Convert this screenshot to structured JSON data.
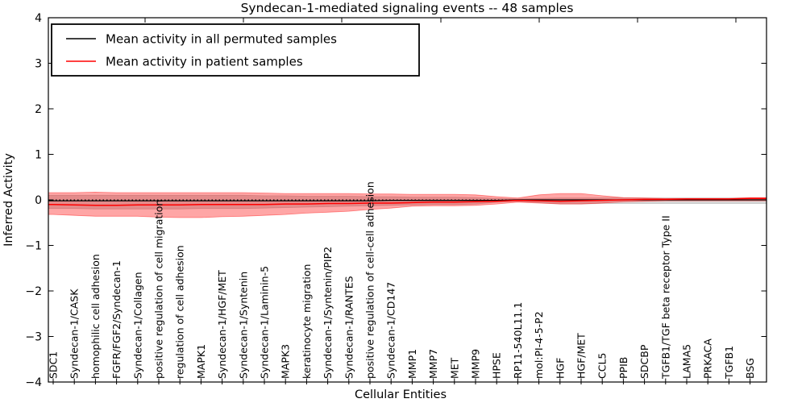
{
  "title": "Syndecan-1-mediated signaling events -- 48 samples",
  "legend": {
    "items": [
      {
        "label": "Mean activity in all permuted samples",
        "color": "#000000"
      },
      {
        "label": "Mean activity in patient samples",
        "color": "#ff0000"
      }
    ]
  },
  "chart_data": {
    "type": "line",
    "title": "Syndecan-1-mediated signaling events -- 48 samples",
    "xlabel": "Cellular Entities",
    "ylabel": "Inferred Activity",
    "ylim": [
      -4,
      4
    ],
    "ytick_values": [
      4,
      3,
      2,
      1,
      0,
      -1,
      -2,
      -3,
      -4
    ],
    "ytick_labels": [
      "4",
      "3",
      "2",
      "1",
      "0",
      "−1",
      "−2",
      "−3",
      "−4"
    ],
    "grid": false,
    "zero_line": true,
    "legend_position": "upper left",
    "categories": [
      "SDC1",
      "Syndecan-1/CASK",
      "homophilic cell adhesion",
      "FGFR/FGF2/Syndecan-1",
      "Syndecan-1/Collagen",
      "positive regulation of cell migration",
      "regulation of cell adhesion",
      "MAPK1",
      "Syndecan-1/HGF/MET",
      "Syndecan-1/Syntenin",
      "Syndecan-1/Laminin-5",
      "MAPK3",
      "keratinocyte migration",
      "Syndecan-1/Syntenin/PIP2",
      "Syndecan-1/RANTES",
      "positive regulation of cell-cell adhesion",
      "Syndecan-1/CD147",
      "MMP1",
      "MMP7",
      "MET",
      "MMP9",
      "HPSE",
      "RP11-540L11.1",
      "mol:PI-4-5-P2",
      "HGF",
      "HGF/MET",
      "CCL5",
      "PPIB",
      "SDCBP",
      "TGFB1/TGF beta receptor Type II",
      "LAMA5",
      "PRKACA",
      "TGFB1",
      "BSG"
    ],
    "series": [
      {
        "name": "Mean activity in all permuted samples",
        "color": "#000000",
        "values": [
          -0.02,
          -0.02,
          -0.02,
          -0.02,
          -0.02,
          -0.02,
          -0.02,
          -0.02,
          -0.02,
          -0.02,
          -0.02,
          -0.02,
          -0.02,
          -0.02,
          -0.02,
          -0.02,
          -0.01,
          -0.01,
          -0.01,
          -0.01,
          -0.01,
          -0.01,
          0,
          0,
          0,
          0,
          0,
          0,
          0,
          0,
          0,
          0,
          0,
          0
        ]
      },
      {
        "name": "Mean activity in patient samples",
        "color": "#ff0000",
        "values": [
          -0.1,
          -0.11,
          -0.12,
          -0.12,
          -0.11,
          -0.11,
          -0.11,
          -0.1,
          -0.1,
          -0.1,
          -0.1,
          -0.09,
          -0.09,
          -0.08,
          -0.08,
          -0.07,
          -0.07,
          -0.06,
          -0.05,
          -0.05,
          -0.04,
          -0.03,
          -0.01,
          -0.02,
          -0.03,
          -0.02,
          -0.01,
          0.0,
          0.01,
          0.01,
          0.02,
          0.02,
          0.02,
          0.03
        ]
      }
    ],
    "bands": [
      {
        "name": "permuted-samples-spread",
        "color": "#999999",
        "opacity": 0.4,
        "upper": [
          0.1,
          0.1,
          0.1,
          0.1,
          0.1,
          0.1,
          0.1,
          0.1,
          0.1,
          0.1,
          0.09,
          0.09,
          0.08,
          0.08,
          0.08,
          0.07,
          0.07,
          0.06,
          0.06,
          0.06,
          0.05,
          0.03,
          0.02,
          0.03,
          0.04,
          0.04,
          0.04,
          0.04,
          0.04,
          0.04,
          0.04,
          0.04,
          0.04,
          0.04
        ],
        "lower": [
          -0.19,
          -0.19,
          -0.2,
          -0.2,
          -0.2,
          -0.2,
          -0.2,
          -0.19,
          -0.19,
          -0.19,
          -0.18,
          -0.17,
          -0.16,
          -0.15,
          -0.14,
          -0.13,
          -0.12,
          -0.11,
          -0.1,
          -0.1,
          -0.09,
          -0.05,
          -0.03,
          -0.06,
          -0.09,
          -0.09,
          -0.08,
          -0.08,
          -0.08,
          -0.08,
          -0.08,
          -0.08,
          -0.08,
          -0.08
        ]
      },
      {
        "name": "patient-samples-spread",
        "color": "#ff0000",
        "opacity": 0.35,
        "upper": [
          0.16,
          0.16,
          0.17,
          0.16,
          0.16,
          0.16,
          0.16,
          0.16,
          0.16,
          0.16,
          0.15,
          0.14,
          0.14,
          0.14,
          0.14,
          0.13,
          0.13,
          0.12,
          0.12,
          0.12,
          0.11,
          0.07,
          0.04,
          0.11,
          0.14,
          0.14,
          0.09,
          0.05,
          0.04,
          0.03,
          0.03,
          0.03,
          0.03,
          0.05
        ],
        "lower": [
          -0.32,
          -0.34,
          -0.36,
          -0.36,
          -0.36,
          -0.38,
          -0.39,
          -0.39,
          -0.37,
          -0.36,
          -0.34,
          -0.32,
          -0.29,
          -0.27,
          -0.25,
          -0.21,
          -0.18,
          -0.14,
          -0.13,
          -0.13,
          -0.12,
          -0.09,
          -0.05,
          -0.07,
          -0.09,
          -0.09,
          -0.07,
          -0.04,
          -0.03,
          -0.02,
          -0.02,
          -0.02,
          -0.02,
          -0.02
        ]
      }
    ]
  }
}
